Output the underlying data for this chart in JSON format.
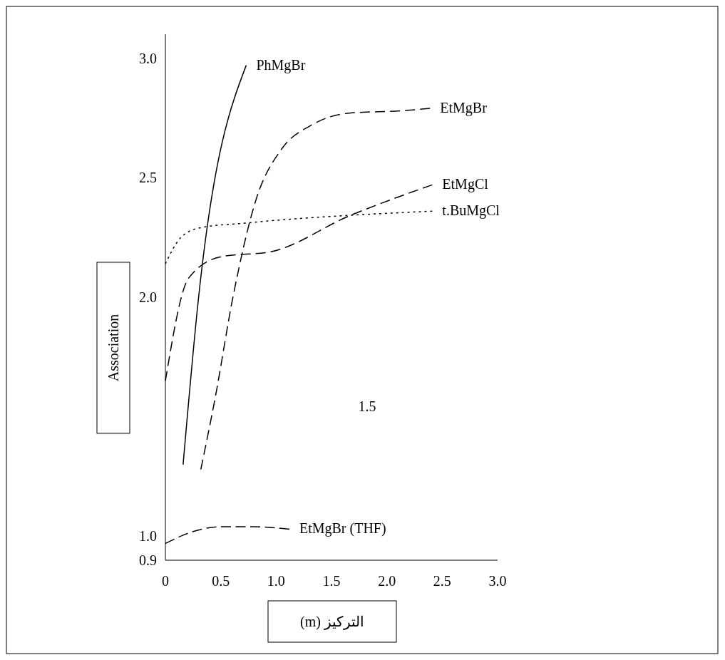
{
  "chart_data": {
    "type": "line",
    "xlabel": "التركيز (m)",
    "ylabel": "Association",
    "xlim": [
      0,
      3.0
    ],
    "ylim": [
      0.9,
      3.1
    ],
    "xticks": [
      0,
      0.5,
      {
        "value": 1.0,
        "label": "1.0"
      },
      1.5,
      {
        "value": 2.0,
        "label": "2.0"
      },
      2.5,
      {
        "value": 3.0,
        "label": "3.0"
      }
    ],
    "yticks": [
      0.9,
      {
        "value": 1.0,
        "label": "1.0"
      },
      {
        "value": 2.0,
        "label": "2.0"
      },
      2.5,
      {
        "value": 3.0,
        "label": "3.0"
      }
    ],
    "grid": false,
    "marker": "none",
    "annotations": [
      "1.5"
    ],
    "series": [
      {
        "name": "PhMgBr",
        "color": "#000000",
        "line_style": "solid",
        "x": [
          0.16,
          0.3,
          0.73
        ],
        "values": [
          1.3,
          2.0,
          2.97
        ]
      },
      {
        "name": "EtMgBr",
        "color": "#000000",
        "line_style": "dashed",
        "x": [
          0.32,
          0.45,
          0.61,
          0.82,
          1.05,
          1.32,
          1.66,
          2.14,
          2.39
        ],
        "values": [
          1.28,
          1.58,
          2.0,
          2.41,
          2.62,
          2.72,
          2.77,
          2.78,
          2.79
        ]
      },
      {
        "name": "EtMgCl",
        "color": "#000000",
        "line_style": "dashed",
        "x": [
          0,
          0.21,
          0.51,
          0.95,
          1.66,
          2.41
        ],
        "values": [
          1.65,
          2.08,
          2.17,
          2.19,
          2.34,
          2.47
        ]
      },
      {
        "name": "t.BuMgCl",
        "color": "#000000",
        "line_style": "dotted",
        "x": [
          0,
          0.14,
          0.31,
          0.72,
          2.41
        ],
        "values": [
          2.14,
          2.25,
          2.29,
          2.31,
          2.36
        ]
      },
      {
        "name": "EtMgBr (THF)",
        "color": "#000000",
        "line_style": "dashed",
        "x": [
          0,
          0.25,
          0.5,
          0.8,
          1.12
        ],
        "values": [
          0.97,
          1.02,
          1.04,
          1.04,
          1.03
        ]
      }
    ]
  }
}
